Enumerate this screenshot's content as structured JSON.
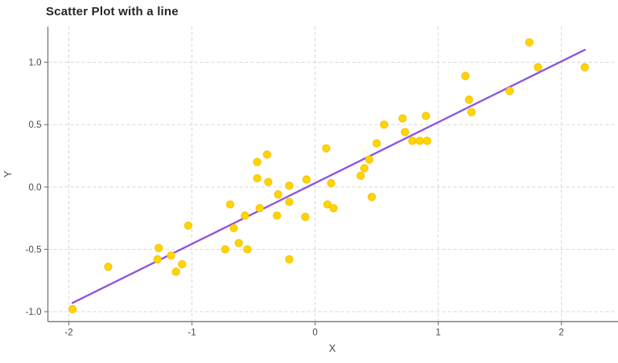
{
  "chart_data": {
    "type": "scatter",
    "title": "Scatter Plot with a line",
    "xlabel": "X",
    "ylabel": "Y",
    "xlim": [
      -2.17,
      2.45
    ],
    "ylim": [
      -1.08,
      1.287
    ],
    "x_ticks": [
      -2,
      -1,
      0,
      1,
      2
    ],
    "x_tick_labels": [
      "-2",
      "-1",
      "0",
      "1",
      "2"
    ],
    "y_ticks": [
      -1.0,
      -0.5,
      0.0,
      0.5,
      1.0
    ],
    "y_tick_labels": [
      "-1.0",
      "-0.5",
      "0.0",
      "0.5",
      "1.0"
    ],
    "grid": true,
    "grid_style": "dashed",
    "legend": "none",
    "series": [
      {
        "name": "scatter-points",
        "type": "scatter",
        "color": "#FFD400",
        "edge_color": "#EDBE00",
        "points": [
          [
            -1.97,
            -0.98
          ],
          [
            -1.68,
            -0.64
          ],
          [
            -1.28,
            -0.58
          ],
          [
            -1.27,
            -0.49
          ],
          [
            -1.17,
            -0.55
          ],
          [
            -1.13,
            -0.68
          ],
          [
            -1.08,
            -0.62
          ],
          [
            -1.03,
            -0.31
          ],
          [
            -0.73,
            -0.5
          ],
          [
            -0.69,
            -0.14
          ],
          [
            -0.66,
            -0.33
          ],
          [
            -0.62,
            -0.45
          ],
          [
            -0.57,
            -0.23
          ],
          [
            -0.55,
            -0.5
          ],
          [
            -0.47,
            0.2
          ],
          [
            -0.47,
            0.07
          ],
          [
            -0.45,
            -0.17
          ],
          [
            -0.39,
            0.26
          ],
          [
            -0.38,
            0.04
          ],
          [
            -0.31,
            -0.23
          ],
          [
            -0.3,
            -0.06
          ],
          [
            -0.21,
            0.01
          ],
          [
            -0.21,
            -0.12
          ],
          [
            -0.21,
            -0.58
          ],
          [
            -0.08,
            -0.24
          ],
          [
            -0.07,
            0.06
          ],
          [
            0.09,
            0.31
          ],
          [
            0.1,
            -0.14
          ],
          [
            0.13,
            0.03
          ],
          [
            0.15,
            -0.17
          ],
          [
            0.37,
            0.09
          ],
          [
            0.4,
            0.15
          ],
          [
            0.44,
            0.22
          ],
          [
            0.46,
            -0.08
          ],
          [
            0.5,
            0.35
          ],
          [
            0.56,
            0.5
          ],
          [
            0.71,
            0.55
          ],
          [
            0.73,
            0.44
          ],
          [
            0.79,
            0.37
          ],
          [
            0.85,
            0.37
          ],
          [
            0.91,
            0.37
          ],
          [
            0.9,
            0.57
          ],
          [
            1.22,
            0.89
          ],
          [
            1.25,
            0.7
          ],
          [
            1.27,
            0.6
          ],
          [
            1.58,
            0.77
          ],
          [
            1.74,
            1.16
          ],
          [
            1.81,
            0.96
          ],
          [
            2.19,
            0.96
          ]
        ]
      },
      {
        "name": "fit-line",
        "type": "line",
        "color": "#8C55E1",
        "points": [
          [
            -1.97,
            -0.93
          ],
          [
            2.19,
            1.1
          ]
        ]
      }
    ],
    "colors": {
      "background": "#FFFFFF",
      "grid": "#D8D8D8",
      "axis": "#7E7E7E",
      "text": "#4A4A4A",
      "title": "#262626",
      "point": "#FFD400",
      "line": "#8C55E1"
    }
  }
}
